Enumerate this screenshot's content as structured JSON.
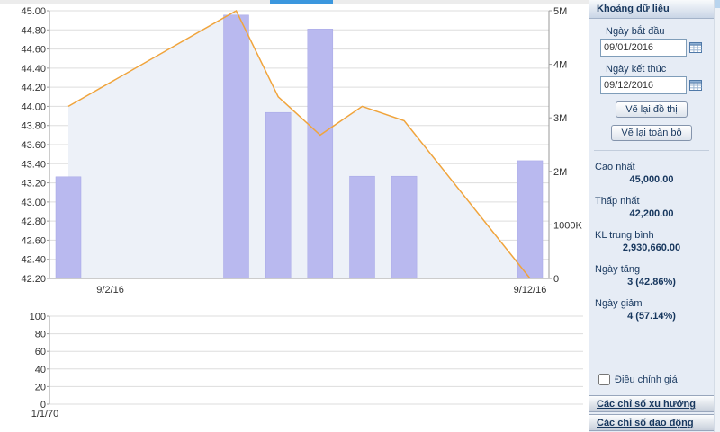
{
  "window": {
    "active_tab_color": "#3b97de"
  },
  "sidebar": {
    "panel_title": "Khoảng dữ liệu",
    "start_date_label": "Ngày bắt đầu",
    "start_date_value": "09/01/2016",
    "end_date_label": "Ngày kết thúc",
    "end_date_value": "09/12/2016",
    "redraw_chart_button": "Vẽ lại đồ thị",
    "redraw_all_button": "Vẽ lại toàn bộ",
    "stats": [
      {
        "label": "Cao nhất",
        "value": "45,000.00"
      },
      {
        "label": "Thấp nhất",
        "value": "42,200.00"
      },
      {
        "label": "KL trung bình",
        "value": "2,930,660.00"
      },
      {
        "label": "Ngày tăng",
        "value": "3 (42.86%)"
      },
      {
        "label": "Ngày giảm",
        "value": "4 (57.14%)"
      }
    ],
    "adjust_price_label": "Điều chỉnh giá",
    "accordion_trend": "Các chỉ số xu hướng",
    "accordion_oscillator": "Các chỉ số dao động"
  },
  "chart_data": [
    {
      "type": "line",
      "name": "price-with-volume",
      "x_dates": [
        "9/1/16",
        "9/5/16",
        "9/6/16",
        "9/7/16",
        "9/8/16",
        "9/9/16",
        "9/12/16"
      ],
      "x_day_offsets": [
        0,
        4,
        5,
        6,
        7,
        8,
        11
      ],
      "x_day_span": 11,
      "series": [
        {
          "name": "close-price",
          "type": "line",
          "axis": "left",
          "color": "#f0a43c",
          "values": [
            44.0,
            45.0,
            44.1,
            43.7,
            44.0,
            43.85,
            42.2
          ]
        },
        {
          "name": "volume",
          "type": "bar",
          "axis": "right",
          "color": "#b9b9ef",
          "values": [
            1900000,
            4920000,
            3100000,
            4660000,
            1910000,
            1910000,
            2200000
          ]
        }
      ],
      "left_axis": {
        "min": 42.2,
        "max": 45.0,
        "tick_labels": [
          "45.00",
          "44.80",
          "44.60",
          "44.40",
          "44.20",
          "44.00",
          "43.80",
          "43.60",
          "43.40",
          "43.20",
          "43.00",
          "42.80",
          "42.60",
          "42.40",
          "42.20"
        ]
      },
      "right_axis": {
        "min": 0,
        "max": 5000000,
        "tick_labels": [
          "5M",
          "4M",
          "3M",
          "2M",
          "1000K",
          "0"
        ]
      },
      "x_tick_labels": [
        {
          "label": "9/2/16",
          "day": 1
        },
        {
          "label": "9/12/16",
          "day": 11
        }
      ],
      "area_fill": "#edf1f8",
      "grid": true,
      "legend": "none"
    },
    {
      "type": "line",
      "name": "oscillator-empty",
      "y_min": 0,
      "y_max": 100,
      "y_tick_labels": [
        "100",
        "80",
        "60",
        "40",
        "20",
        "0"
      ],
      "x_tick_labels": [
        "1/1/70"
      ],
      "series": [],
      "grid": true
    }
  ]
}
